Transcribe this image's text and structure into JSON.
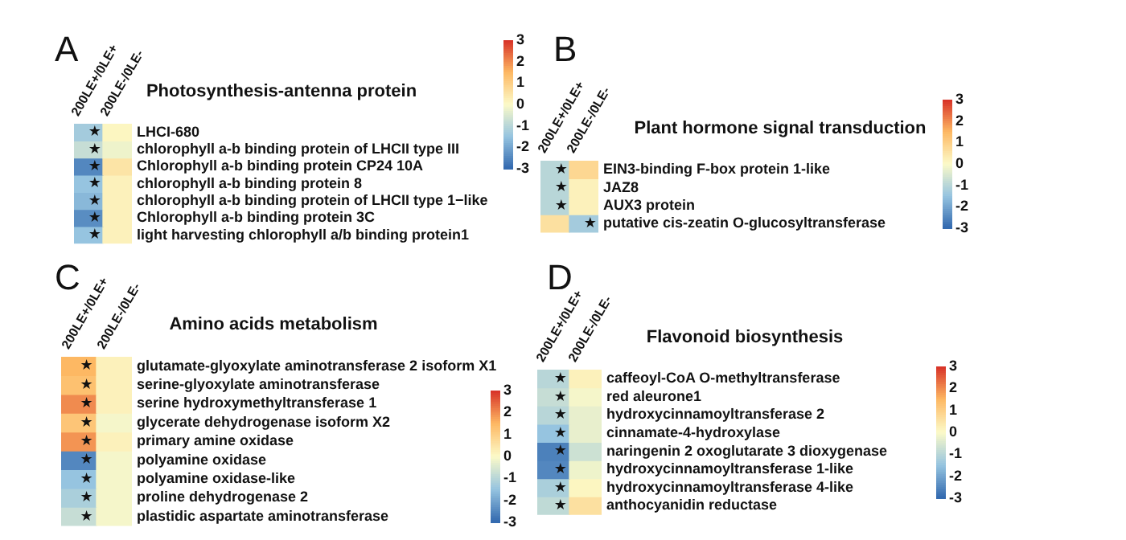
{
  "chart_data": [
    {
      "type": "heatmap",
      "title": "Photosynthesis-antenna protein",
      "annotations": [
        "A"
      ],
      "categories": [
        "200LE+/0LE+",
        "200LE-/0LE-"
      ],
      "y_categories": [
        "LHCI-680",
        "chlorophyll a-b binding protein of LHCII type III",
        "Chlorophyll a-b binding protein CP24 10A",
        "chlorophyll a-b binding protein 8",
        "chlorophyll a-b binding protein of LHCII type 1−like",
        "Chlorophyll a-b binding protein 3C",
        "light harvesting chlorophyll a/b binding protein1"
      ],
      "cells": [
        [
          -1.3,
          0.1
        ],
        [
          -0.8,
          -0.2
        ],
        [
          -2.5,
          0.5
        ],
        [
          -1.5,
          0.2
        ],
        [
          -1.7,
          0.2
        ],
        [
          -2.4,
          0.2
        ],
        [
          -1.5,
          0.2
        ]
      ],
      "cell_labels": [
        [
          "★",
          null
        ],
        [
          "★",
          null
        ],
        [
          "★",
          null
        ],
        [
          "★",
          null
        ],
        [
          "★",
          null
        ],
        [
          "★",
          null
        ],
        [
          "★",
          null
        ]
      ],
      "clim": [
        -3,
        3
      ],
      "cticks": [
        3,
        2,
        1,
        0,
        -1,
        -2,
        -3
      ]
    },
    {
      "type": "heatmap",
      "title": "Plant hormone signal transduction",
      "annotations": [
        "B"
      ],
      "categories": [
        "200LE+/0LE+",
        "200LE-/0LE-"
      ],
      "y_categories": [
        "EIN3-binding F-box protein 1-like",
        "JAZ8",
        "AUX3 protein",
        "putative cis-zeatin O-glucosyltransferase"
      ],
      "cells": [
        [
          -1.0,
          0.8
        ],
        [
          -1.0,
          0.2
        ],
        [
          -1.0,
          0.2
        ],
        [
          0.6,
          -1.3
        ]
      ],
      "cell_labels": [
        [
          "★",
          null
        ],
        [
          "★",
          null
        ],
        [
          "★",
          null
        ],
        [
          null,
          "★"
        ]
      ],
      "clim": [
        -3,
        3
      ],
      "cticks": [
        3,
        2,
        1,
        0,
        -1,
        -2,
        -3
      ]
    },
    {
      "type": "heatmap",
      "title": "Amino acids metabolism",
      "annotations": [
        "C"
      ],
      "categories": [
        "200LE+/0LE+",
        "200LE-/0LE-"
      ],
      "y_categories": [
        "glutamate-glyoxylate aminotransferase 2 isoform X1",
        "serine-glyoxylate aminotransferase",
        "serine hydroxymethyltransferase 1",
        "glycerate dehydrogenase isoform X2",
        "primary amine oxidase",
        "polyamine oxidase",
        "polyamine oxidase-like",
        "proline dehydrogenase 2",
        "plastidic aspartate aminotransferase"
      ],
      "cells": [
        [
          1.5,
          0.2
        ],
        [
          1.3,
          0.2
        ],
        [
          2.0,
          0.2
        ],
        [
          1.2,
          -0.1
        ],
        [
          1.9,
          0.2
        ],
        [
          -2.5,
          -0.1
        ],
        [
          -1.5,
          -0.1
        ],
        [
          -1.2,
          -0.1
        ],
        [
          -0.8,
          -0.1
        ]
      ],
      "cell_labels": [
        [
          "★",
          null
        ],
        [
          "★",
          null
        ],
        [
          "★",
          null
        ],
        [
          "★",
          null
        ],
        [
          "★",
          null
        ],
        [
          "★",
          null
        ],
        [
          "★",
          null
        ],
        [
          "★",
          null
        ],
        [
          "★",
          null
        ]
      ],
      "clim": [
        -3,
        3
      ],
      "cticks": [
        3,
        2,
        1,
        0,
        -1,
        -2,
        -3
      ]
    },
    {
      "type": "heatmap",
      "title": "Flavonoid biosynthesis",
      "annotations": [
        "D"
      ],
      "categories": [
        "200LE+/0LE+",
        "200LE-/0LE-"
      ],
      "y_categories": [
        "caffeoyl-CoA O-methyltransferase",
        "red aleurone1",
        "hydroxycinnamoyltransferase 2",
        "cinnamate-4-hydroxylase",
        "naringenin 2 oxoglutarate 3 dioxygenase",
        "hydroxycinnamoyltransferase 1-like",
        "hydroxycinnamoyltransferase 4-like",
        "anthocyanidin reductase"
      ],
      "cells": [
        [
          -1.0,
          0.2
        ],
        [
          -0.8,
          -0.1
        ],
        [
          -1.0,
          -0.3
        ],
        [
          -1.5,
          -0.3
        ],
        [
          -2.6,
          -0.7
        ],
        [
          -2.5,
          -0.2
        ],
        [
          -1.2,
          0.1
        ],
        [
          -0.9,
          0.6
        ]
      ],
      "cell_labels": [
        [
          "★",
          null
        ],
        [
          "★",
          null
        ],
        [
          "★",
          null
        ],
        [
          "★",
          null
        ],
        [
          "★",
          null
        ],
        [
          "★",
          null
        ],
        [
          "★",
          null
        ],
        [
          "★",
          null
        ]
      ],
      "clim": [
        -3,
        3
      ],
      "cticks": [
        3,
        2,
        1,
        0,
        -1,
        -2,
        -3
      ]
    }
  ]
}
